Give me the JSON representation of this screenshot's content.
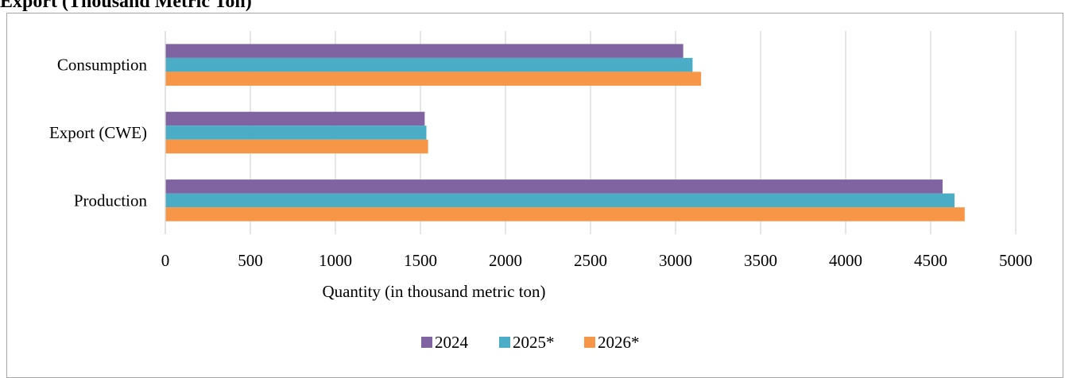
{
  "page": {
    "title": "Export (Thousand Metric Ton)"
  },
  "colors": {
    "series_2024": "#8064a2",
    "series_2025": "#4bacc6",
    "series_2026": "#f79646",
    "gridline": "#d9d9d9",
    "frame": "#a6a6a6"
  },
  "chart_data": {
    "type": "bar",
    "orientation": "horizontal",
    "categories": [
      "Production",
      "Export (CWE)",
      "Consumption"
    ],
    "series": [
      {
        "name": "2024",
        "values": [
          4570,
          1525,
          3045
        ]
      },
      {
        "name": "2025*",
        "values": [
          4640,
          1535,
          3100
        ]
      },
      {
        "name": "2026*",
        "values": [
          4700,
          1545,
          3150
        ]
      }
    ],
    "x_ticks": [
      "0",
      "500",
      "1000",
      "1500",
      "2000",
      "2500",
      "3000",
      "3500",
      "4000",
      "4500",
      "5000"
    ],
    "xlabel": "Quantity (in thousand metric ton)",
    "ylabel": "",
    "xlim": [
      0,
      5000
    ],
    "grid": "vertical",
    "legend_position": "bottom"
  }
}
